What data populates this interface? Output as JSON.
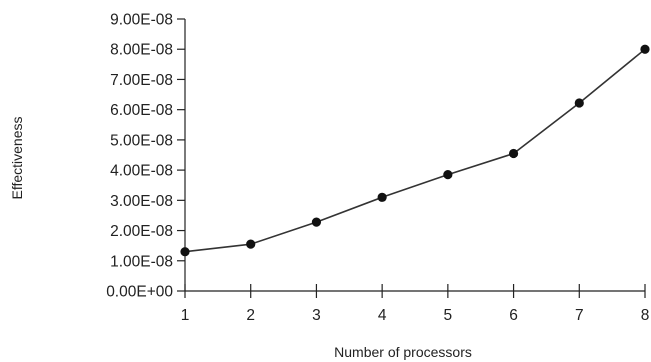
{
  "chart_data": {
    "type": "line",
    "title": "",
    "xlabel": "Number of processors",
    "ylabel": "Effectiveness",
    "x": [
      1,
      2,
      3,
      4,
      5,
      6,
      7,
      8
    ],
    "x_ticks": [
      "1",
      "2",
      "3",
      "4",
      "5",
      "6",
      "7",
      "8"
    ],
    "y_ticks": [
      "0.00E+00",
      "1.00E-08",
      "2.00E-08",
      "3.00E-08",
      "4.00E-08",
      "5.00E-08",
      "6.00E-08",
      "7.00E-08",
      "8.00E-08",
      "9.00E-08"
    ],
    "xlim": [
      1,
      8
    ],
    "ylim": [
      0,
      9e-08
    ],
    "grid": false,
    "legend": "none",
    "colors": {
      "line": "#333333",
      "marker": "#111111",
      "axis": "#222222"
    },
    "series": [
      {
        "values": [
          1.3e-08,
          1.55e-08,
          2.28e-08,
          3.1e-08,
          3.85e-08,
          4.55e-08,
          6.22e-08,
          8e-08
        ]
      }
    ]
  }
}
